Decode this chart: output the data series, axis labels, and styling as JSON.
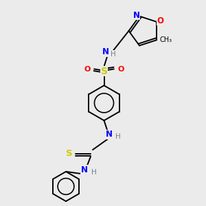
{
  "bg_color": "#ebebeb",
  "atom_colors": {
    "C": "#000000",
    "N": "#0000ff",
    "O": "#ff0000",
    "S": "#cccc00",
    "H": "#708090"
  },
  "bond_color": "#000000",
  "lw": 1.4,
  "fs": 7.5,
  "xlim": [
    0,
    10
  ],
  "ylim": [
    0,
    10
  ]
}
